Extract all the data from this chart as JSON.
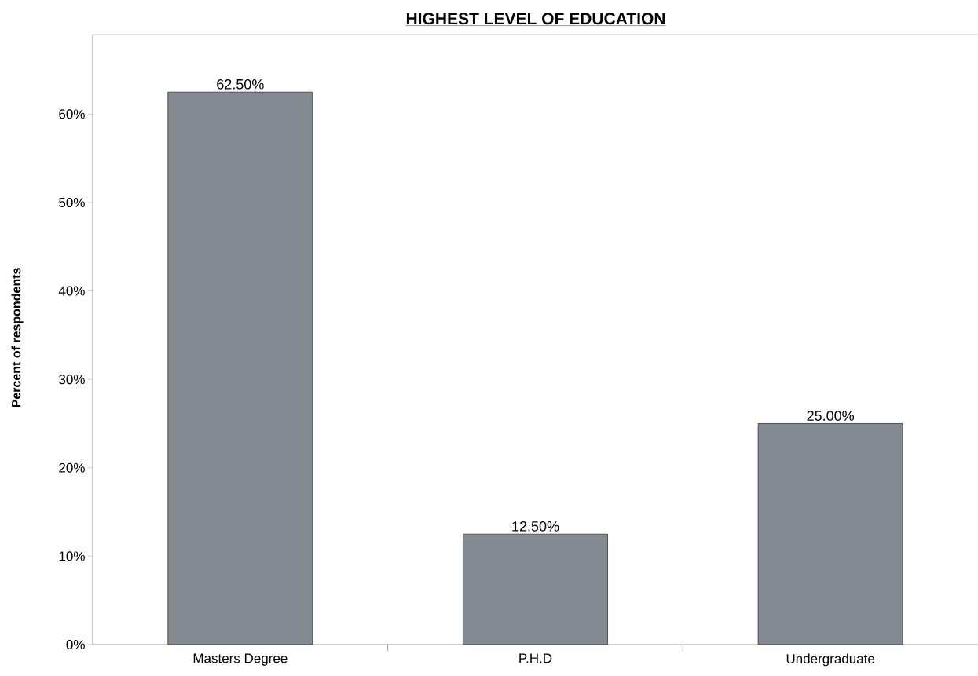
{
  "chart_data": {
    "type": "bar",
    "title": "HIGHEST LEVEL OF EDUCATION",
    "ylabel": "Percent of respondents",
    "categories": [
      "Masters Degree",
      "P.H.D",
      "Undergraduate"
    ],
    "values": [
      62.5,
      12.5,
      25.0
    ],
    "value_labels": [
      "62.50%",
      "12.50%",
      "25.00%"
    ],
    "color": "#848a91",
    "ylim": [
      0,
      69
    ],
    "yticks": [
      {
        "value": 0,
        "label": "0%"
      },
      {
        "value": 10,
        "label": "10%"
      },
      {
        "value": 20,
        "label": "20%"
      },
      {
        "value": 30,
        "label": "30%"
      },
      {
        "value": 40,
        "label": "40%"
      },
      {
        "value": 50,
        "label": "50%"
      },
      {
        "value": 60,
        "label": "60%"
      }
    ],
    "grid": false
  }
}
